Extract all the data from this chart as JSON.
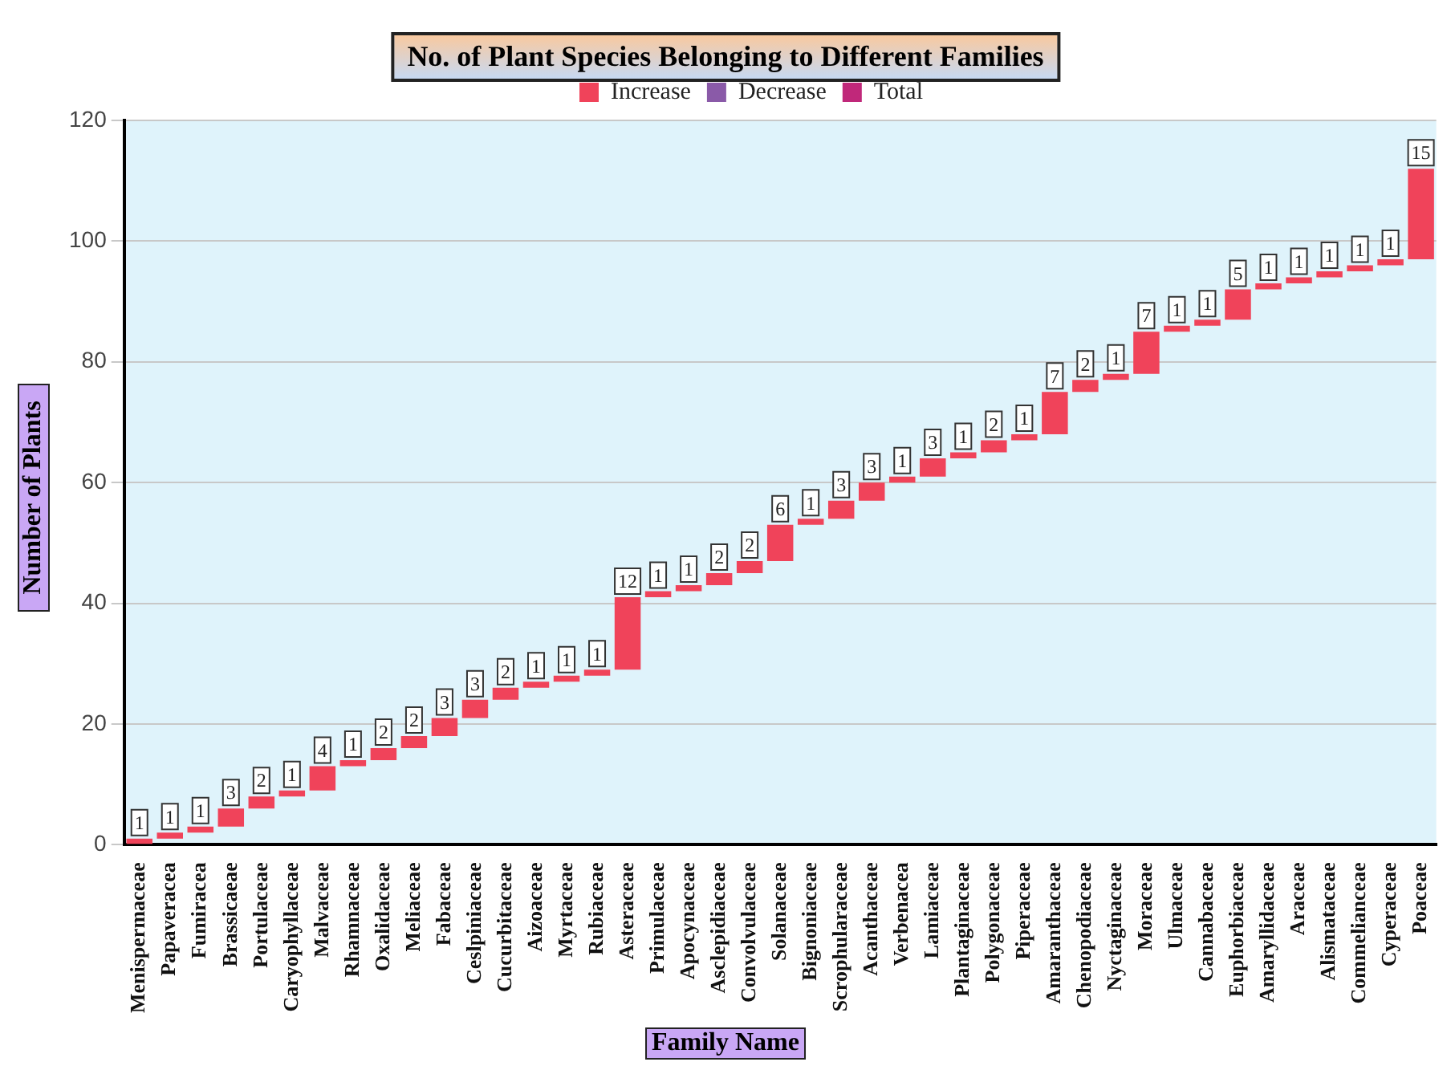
{
  "chart_data": {
    "type": "bar",
    "title": "No. of  Plant Species Belonging to Different Families",
    "xlabel": "Family Name",
    "ylabel": "Number of Plants",
    "categories": [
      "Menispermaceae",
      "Papaveracea",
      "Fumiracea",
      "Brassicaeae",
      "Portulaceae",
      "Caryophyllaceae",
      "Malvaceae",
      "Rhamnaceae",
      "Oxalidaceae",
      "Meliaceae",
      "Fabaceae",
      "Ceslpiniaceae",
      "Cucurbitaceae",
      "Aizoaceae",
      "Myrtaceae",
      "Rubiaceae",
      "Asteraceae",
      "Primulaceae",
      "Apocynaceae",
      "Asclepidiaceae",
      "Convolvulaceae",
      "Solanaceae",
      "Bignoniaceae",
      "Scrophularaceae",
      "Acanthaceae",
      "Verbenacea",
      "Lamiaceae",
      "Plantaginaceae",
      "Polygonaceae",
      "Piperaceae",
      "Amaranthaceae",
      "Chenopodiaceae",
      "Nyctaginaceae",
      "Moraceae",
      "Ulmaceae",
      "Cannabaceae",
      "Euphorbiaceae",
      "Amaryllidaceae",
      "Araceae",
      "Alismataceae",
      "Commelianceae",
      "Cyperaceae",
      "Poaceae"
    ],
    "series": [
      {
        "name": "Increase",
        "color": "#f0435a",
        "base": [
          0,
          1,
          2,
          3,
          6,
          8,
          9,
          13,
          14,
          16,
          18,
          21,
          24,
          26,
          27,
          28,
          29,
          41,
          42,
          43,
          45,
          47,
          53,
          54,
          57,
          60,
          61,
          64,
          65,
          67,
          68,
          75,
          77,
          78,
          85,
          86,
          87,
          92,
          93,
          94,
          95,
          96,
          97
        ],
        "values": [
          1,
          1,
          1,
          3,
          2,
          1,
          4,
          1,
          2,
          2,
          3,
          3,
          2,
          1,
          1,
          1,
          12,
          1,
          1,
          2,
          2,
          6,
          1,
          3,
          3,
          1,
          3,
          1,
          2,
          1,
          7,
          2,
          1,
          7,
          1,
          1,
          5,
          1,
          1,
          1,
          1,
          1,
          15
        ]
      },
      {
        "name": "Decrease",
        "color": "#8a5aa8",
        "values": [
          null,
          null,
          null,
          null,
          null,
          null,
          null,
          null,
          null,
          null,
          null,
          null,
          null,
          null,
          null,
          null,
          null,
          null,
          null,
          null,
          null,
          null,
          null,
          null,
          null,
          null,
          null,
          null,
          null,
          null,
          null,
          null,
          null,
          null,
          null,
          null,
          null,
          null,
          null,
          null,
          null,
          null,
          null
        ]
      },
      {
        "name": "Total",
        "color": "#c0287a",
        "values": [
          null,
          null,
          null,
          null,
          null,
          null,
          null,
          null,
          null,
          null,
          null,
          null,
          null,
          null,
          null,
          null,
          null,
          null,
          null,
          null,
          null,
          null,
          null,
          null,
          null,
          null,
          null,
          null,
          null,
          null,
          null,
          null,
          null,
          null,
          null,
          null,
          null,
          null,
          null,
          null,
          null,
          null,
          null
        ]
      }
    ],
    "ylim": [
      0,
      120
    ],
    "yticks": [
      0,
      20,
      40,
      60,
      80,
      100,
      120
    ],
    "grid": "y",
    "legend": "top",
    "data_labels": true
  }
}
